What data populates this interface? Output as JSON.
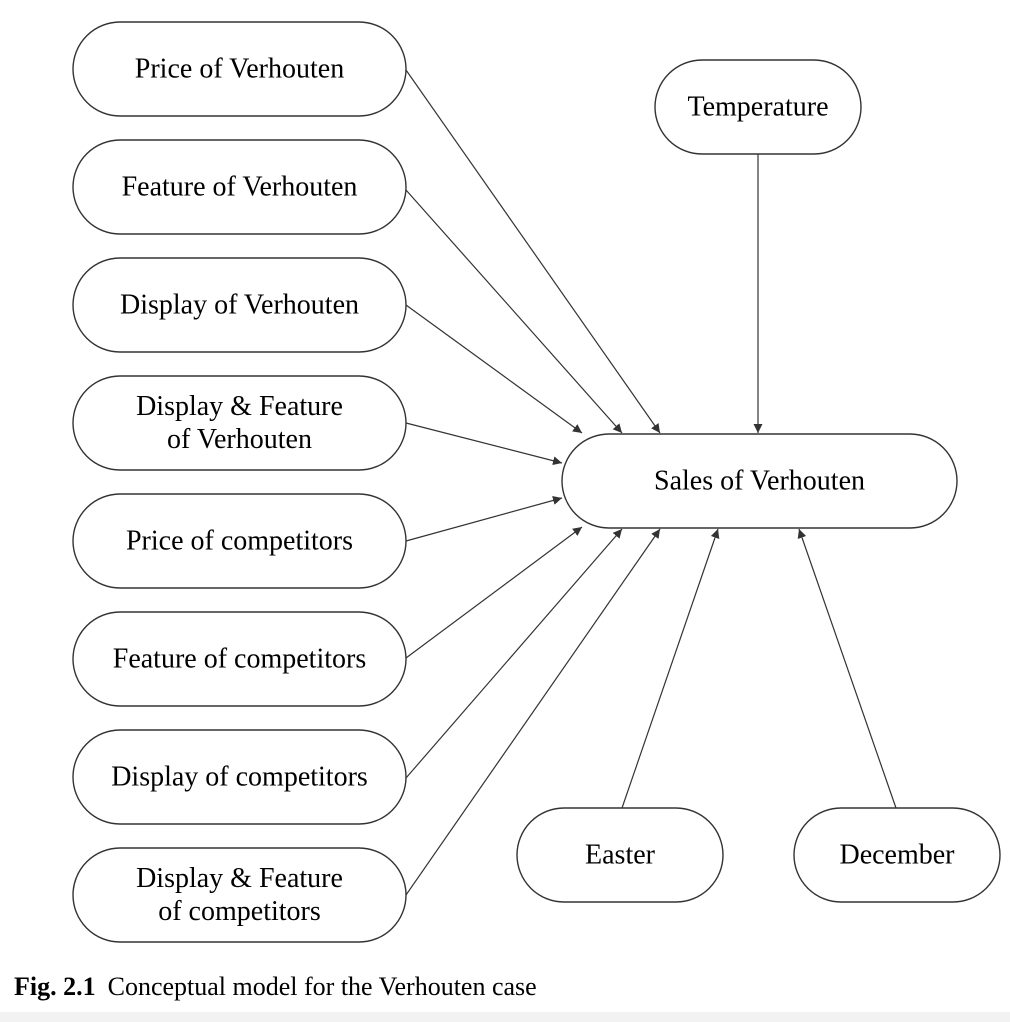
{
  "diagram": {
    "nodes": [
      {
        "id": "price_v",
        "lines": [
          "Price of Verhouten"
        ]
      },
      {
        "id": "feature_v",
        "lines": [
          "Feature of Verhouten"
        ]
      },
      {
        "id": "display_v",
        "lines": [
          "Display of Verhouten"
        ]
      },
      {
        "id": "dispfeat_v",
        "lines": [
          "Display & Feature",
          "of Verhouten"
        ]
      },
      {
        "id": "price_c",
        "lines": [
          "Price of competitors"
        ]
      },
      {
        "id": "feature_c",
        "lines": [
          "Feature of competitors"
        ]
      },
      {
        "id": "display_c",
        "lines": [
          "Display of competitors"
        ]
      },
      {
        "id": "dispfeat_c",
        "lines": [
          "Display & Feature",
          "of competitors"
        ]
      },
      {
        "id": "temperature",
        "lines": [
          "Temperature"
        ]
      },
      {
        "id": "sales",
        "lines": [
          "Sales of Verhouten"
        ]
      },
      {
        "id": "easter",
        "lines": [
          "Easter"
        ]
      },
      {
        "id": "december",
        "lines": [
          "December"
        ]
      }
    ],
    "edges": [
      {
        "from": "price_v",
        "to": "sales"
      },
      {
        "from": "feature_v",
        "to": "sales"
      },
      {
        "from": "display_v",
        "to": "sales"
      },
      {
        "from": "dispfeat_v",
        "to": "sales"
      },
      {
        "from": "price_c",
        "to": "sales"
      },
      {
        "from": "feature_c",
        "to": "sales"
      },
      {
        "from": "display_c",
        "to": "sales"
      },
      {
        "from": "dispfeat_c",
        "to": "sales"
      },
      {
        "from": "temperature",
        "to": "sales"
      },
      {
        "from": "easter",
        "to": "sales"
      },
      {
        "from": "december",
        "to": "sales"
      }
    ]
  },
  "caption": {
    "label": "Fig. 2.1",
    "text": "Conceptual model for the Verhouten case"
  }
}
